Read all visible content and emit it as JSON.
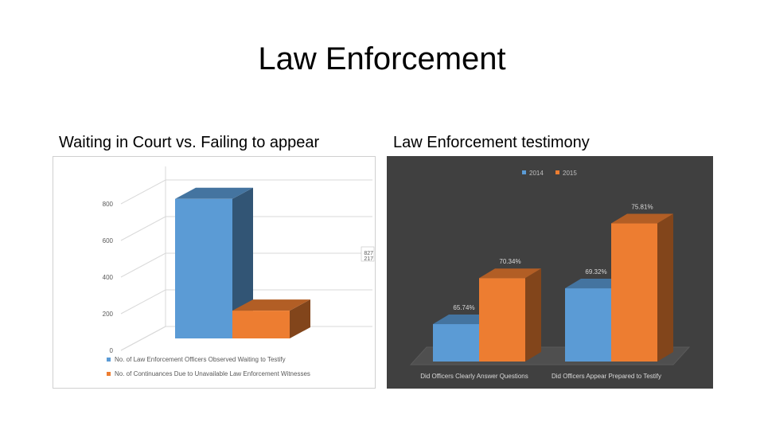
{
  "slide": {
    "title": "Law Enforcement",
    "left_heading": "Waiting in Court vs. Failing to appear",
    "right_heading": "Law Enforcement testimony"
  },
  "chart_data": [
    {
      "type": "bar",
      "title": "",
      "categories": [
        "No. of Law Enforcement Officers Observed Waiting to Testify",
        "No. of Continuances Due to Unavailable Law Enforcement Witnesses"
      ],
      "values": [
        827,
        217
      ],
      "data_labels": [
        "827",
        "217"
      ],
      "ylim": [
        0,
        900
      ],
      "yticks": [
        0,
        200,
        400,
        600,
        800
      ],
      "legend": "bottom",
      "grid": true,
      "three_d": true,
      "colors": [
        "#5b9bd5",
        "#ed7d31"
      ]
    },
    {
      "type": "bar",
      "title": "",
      "categories": [
        "Did Officers Clearly Answer Questions",
        "Did Officers Appear Prepared to Testify"
      ],
      "series": [
        {
          "name": "2014",
          "values": [
            65.74,
            69.32
          ],
          "labels": [
            "65.74%",
            "69.32%"
          ],
          "color": "#5b9bd5"
        },
        {
          "name": "2015",
          "values": [
            70.34,
            75.81
          ],
          "labels": [
            "70.34%",
            "75.81%"
          ],
          "color": "#ed7d31"
        }
      ],
      "ylim": [
        62,
        77
      ],
      "legend": "top",
      "grid": false,
      "three_d": true,
      "background": "#404040"
    }
  ]
}
